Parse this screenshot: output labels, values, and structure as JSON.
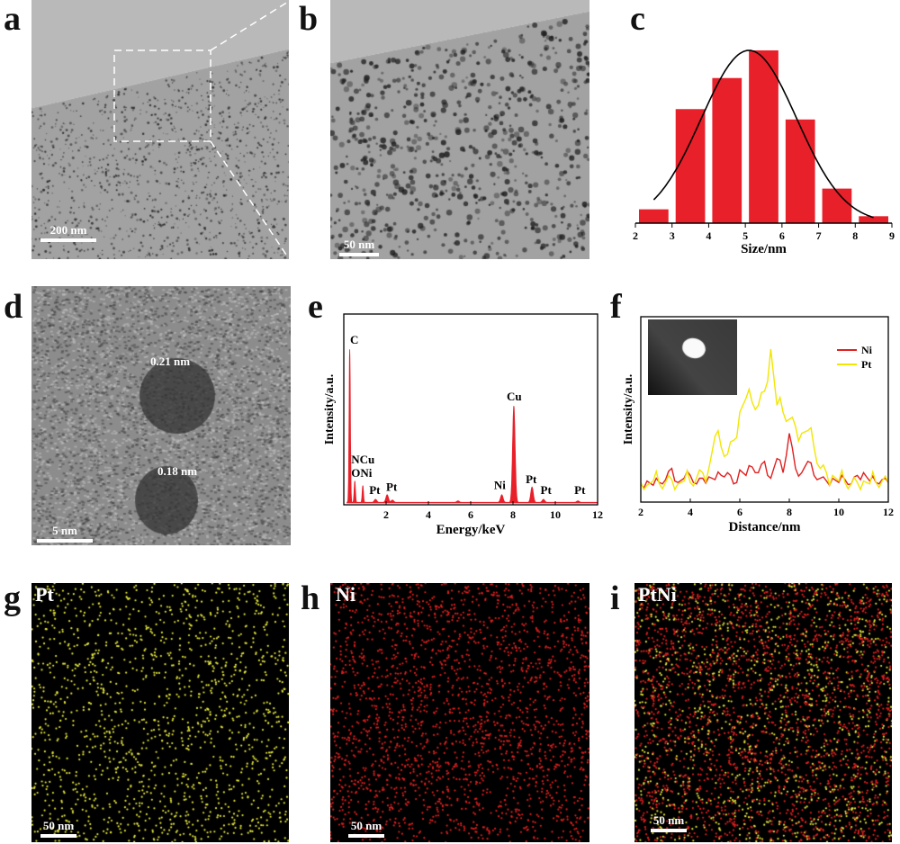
{
  "panels": {
    "a": {
      "label": "a",
      "scale_bar": "200 nm"
    },
    "b": {
      "label": "b",
      "scale_bar": "50 nm"
    },
    "c": {
      "label": "c"
    },
    "d": {
      "label": "d",
      "scale_bar": "5 nm",
      "lattice_1": "0.21 nm",
      "lattice_2": "0.18 nm"
    },
    "e": {
      "label": "e"
    },
    "f": {
      "label": "f"
    },
    "g": {
      "label": "g",
      "element": "Pt",
      "scale_bar": "50 nm",
      "dot_color": "#e6e83a"
    },
    "h": {
      "label": "h",
      "element": "Ni",
      "scale_bar": "50 nm",
      "dot_color": "#e02020"
    },
    "i": {
      "label": "i",
      "element": "PtNi",
      "scale_bar": "50 nm"
    }
  },
  "chart_data": [
    {
      "panel": "c",
      "type": "bar",
      "xlabel": "Size/nm",
      "ylabel": "",
      "xlim": [
        2,
        9
      ],
      "xticks": [
        "2",
        "3",
        "4",
        "5",
        "6",
        "7",
        "8",
        "9"
      ],
      "bins": [
        [
          2,
          3
        ],
        [
          3,
          4
        ],
        [
          4,
          5
        ],
        [
          5,
          6
        ],
        [
          6,
          7
        ],
        [
          7,
          8
        ],
        [
          8,
          9
        ]
      ],
      "values": [
        8,
        66,
        84,
        100,
        60,
        20,
        4
      ],
      "bar_color": "#e8202a",
      "fit": {
        "type": "gaussian",
        "center": 5.1,
        "sigma": 1.3,
        "peak": 100,
        "range": [
          2.5,
          8.5
        ],
        "color": "#000000"
      }
    },
    {
      "panel": "e",
      "type": "area",
      "xlabel": "Energy/keV",
      "ylabel": "Intensity/a.u.",
      "xlim": [
        0,
        12
      ],
      "xticks": [
        "2",
        "4",
        "6",
        "8",
        "10",
        "12"
      ],
      "color": "#e8202a",
      "peaks": [
        {
          "x": 0.28,
          "y": 100
        },
        {
          "x": 0.52,
          "y": 14
        },
        {
          "x": 0.9,
          "y": 11
        },
        {
          "x": 1.5,
          "y": 2
        },
        {
          "x": 2.05,
          "y": 5
        },
        {
          "x": 2.3,
          "y": 1.5
        },
        {
          "x": 5.4,
          "y": 1
        },
        {
          "x": 7.47,
          "y": 5
        },
        {
          "x": 8.04,
          "y": 63
        },
        {
          "x": 8.9,
          "y": 10
        },
        {
          "x": 9.44,
          "y": 2
        },
        {
          "x": 11.07,
          "y": 1
        }
      ],
      "annotations": [
        {
          "text": "C",
          "x": 0.3,
          "y": 104
        },
        {
          "text": "NCu",
          "x": 0.35,
          "y": 26
        },
        {
          "text": "ONi",
          "x": 0.35,
          "y": 17
        },
        {
          "text": "Pt",
          "x": 1.2,
          "y": 6
        },
        {
          "text": "Pt",
          "x": 2.0,
          "y": 8
        },
        {
          "text": "Ni",
          "x": 7.1,
          "y": 9
        },
        {
          "text": "Cu",
          "x": 7.7,
          "y": 67
        },
        {
          "text": "Pt",
          "x": 8.6,
          "y": 13
        },
        {
          "text": "Pt",
          "x": 9.3,
          "y": 6
        },
        {
          "text": "Pt",
          "x": 10.9,
          "y": 6
        }
      ]
    },
    {
      "panel": "f",
      "type": "line",
      "xlabel": "Distance/nm",
      "ylabel": "Intensity/a.u.",
      "xlim": [
        2,
        12
      ],
      "xticks": [
        "2",
        "4",
        "6",
        "8",
        "10",
        "12"
      ],
      "x": [
        2,
        2.25,
        2.5,
        2.75,
        3,
        3.25,
        3.5,
        3.75,
        4,
        4.25,
        4.5,
        4.75,
        5,
        5.25,
        5.5,
        5.75,
        6,
        6.25,
        6.5,
        6.75,
        7,
        7.25,
        7.5,
        7.75,
        8,
        8.25,
        8.5,
        8.75,
        9,
        9.25,
        9.5,
        9.75,
        10,
        10.25,
        10.5,
        10.75,
        11,
        11.25,
        11.5,
        11.75,
        12
      ],
      "series": [
        {
          "name": "Ni",
          "color": "#e02020",
          "values": [
            4,
            6,
            3,
            5,
            7,
            15,
            5,
            8,
            10,
            4,
            8,
            9,
            7,
            10,
            12,
            4,
            14,
            10,
            16,
            12,
            20,
            8,
            22,
            12,
            40,
            15,
            12,
            20,
            10,
            8,
            6,
            8,
            5,
            7,
            4,
            10,
            12,
            6,
            5,
            7,
            5
          ]
        },
        {
          "name": "Pt",
          "color": "#f2e600",
          "values": [
            5,
            3,
            6,
            4,
            5,
            7,
            4,
            6,
            5,
            8,
            12,
            15,
            38,
            30,
            25,
            35,
            55,
            65,
            62,
            60,
            70,
            100,
            60,
            55,
            50,
            45,
            40,
            42,
            30,
            15,
            12,
            10,
            6,
            5,
            4,
            5,
            6,
            4,
            5,
            6,
            5
          ]
        }
      ],
      "legend": "top-right"
    }
  ]
}
